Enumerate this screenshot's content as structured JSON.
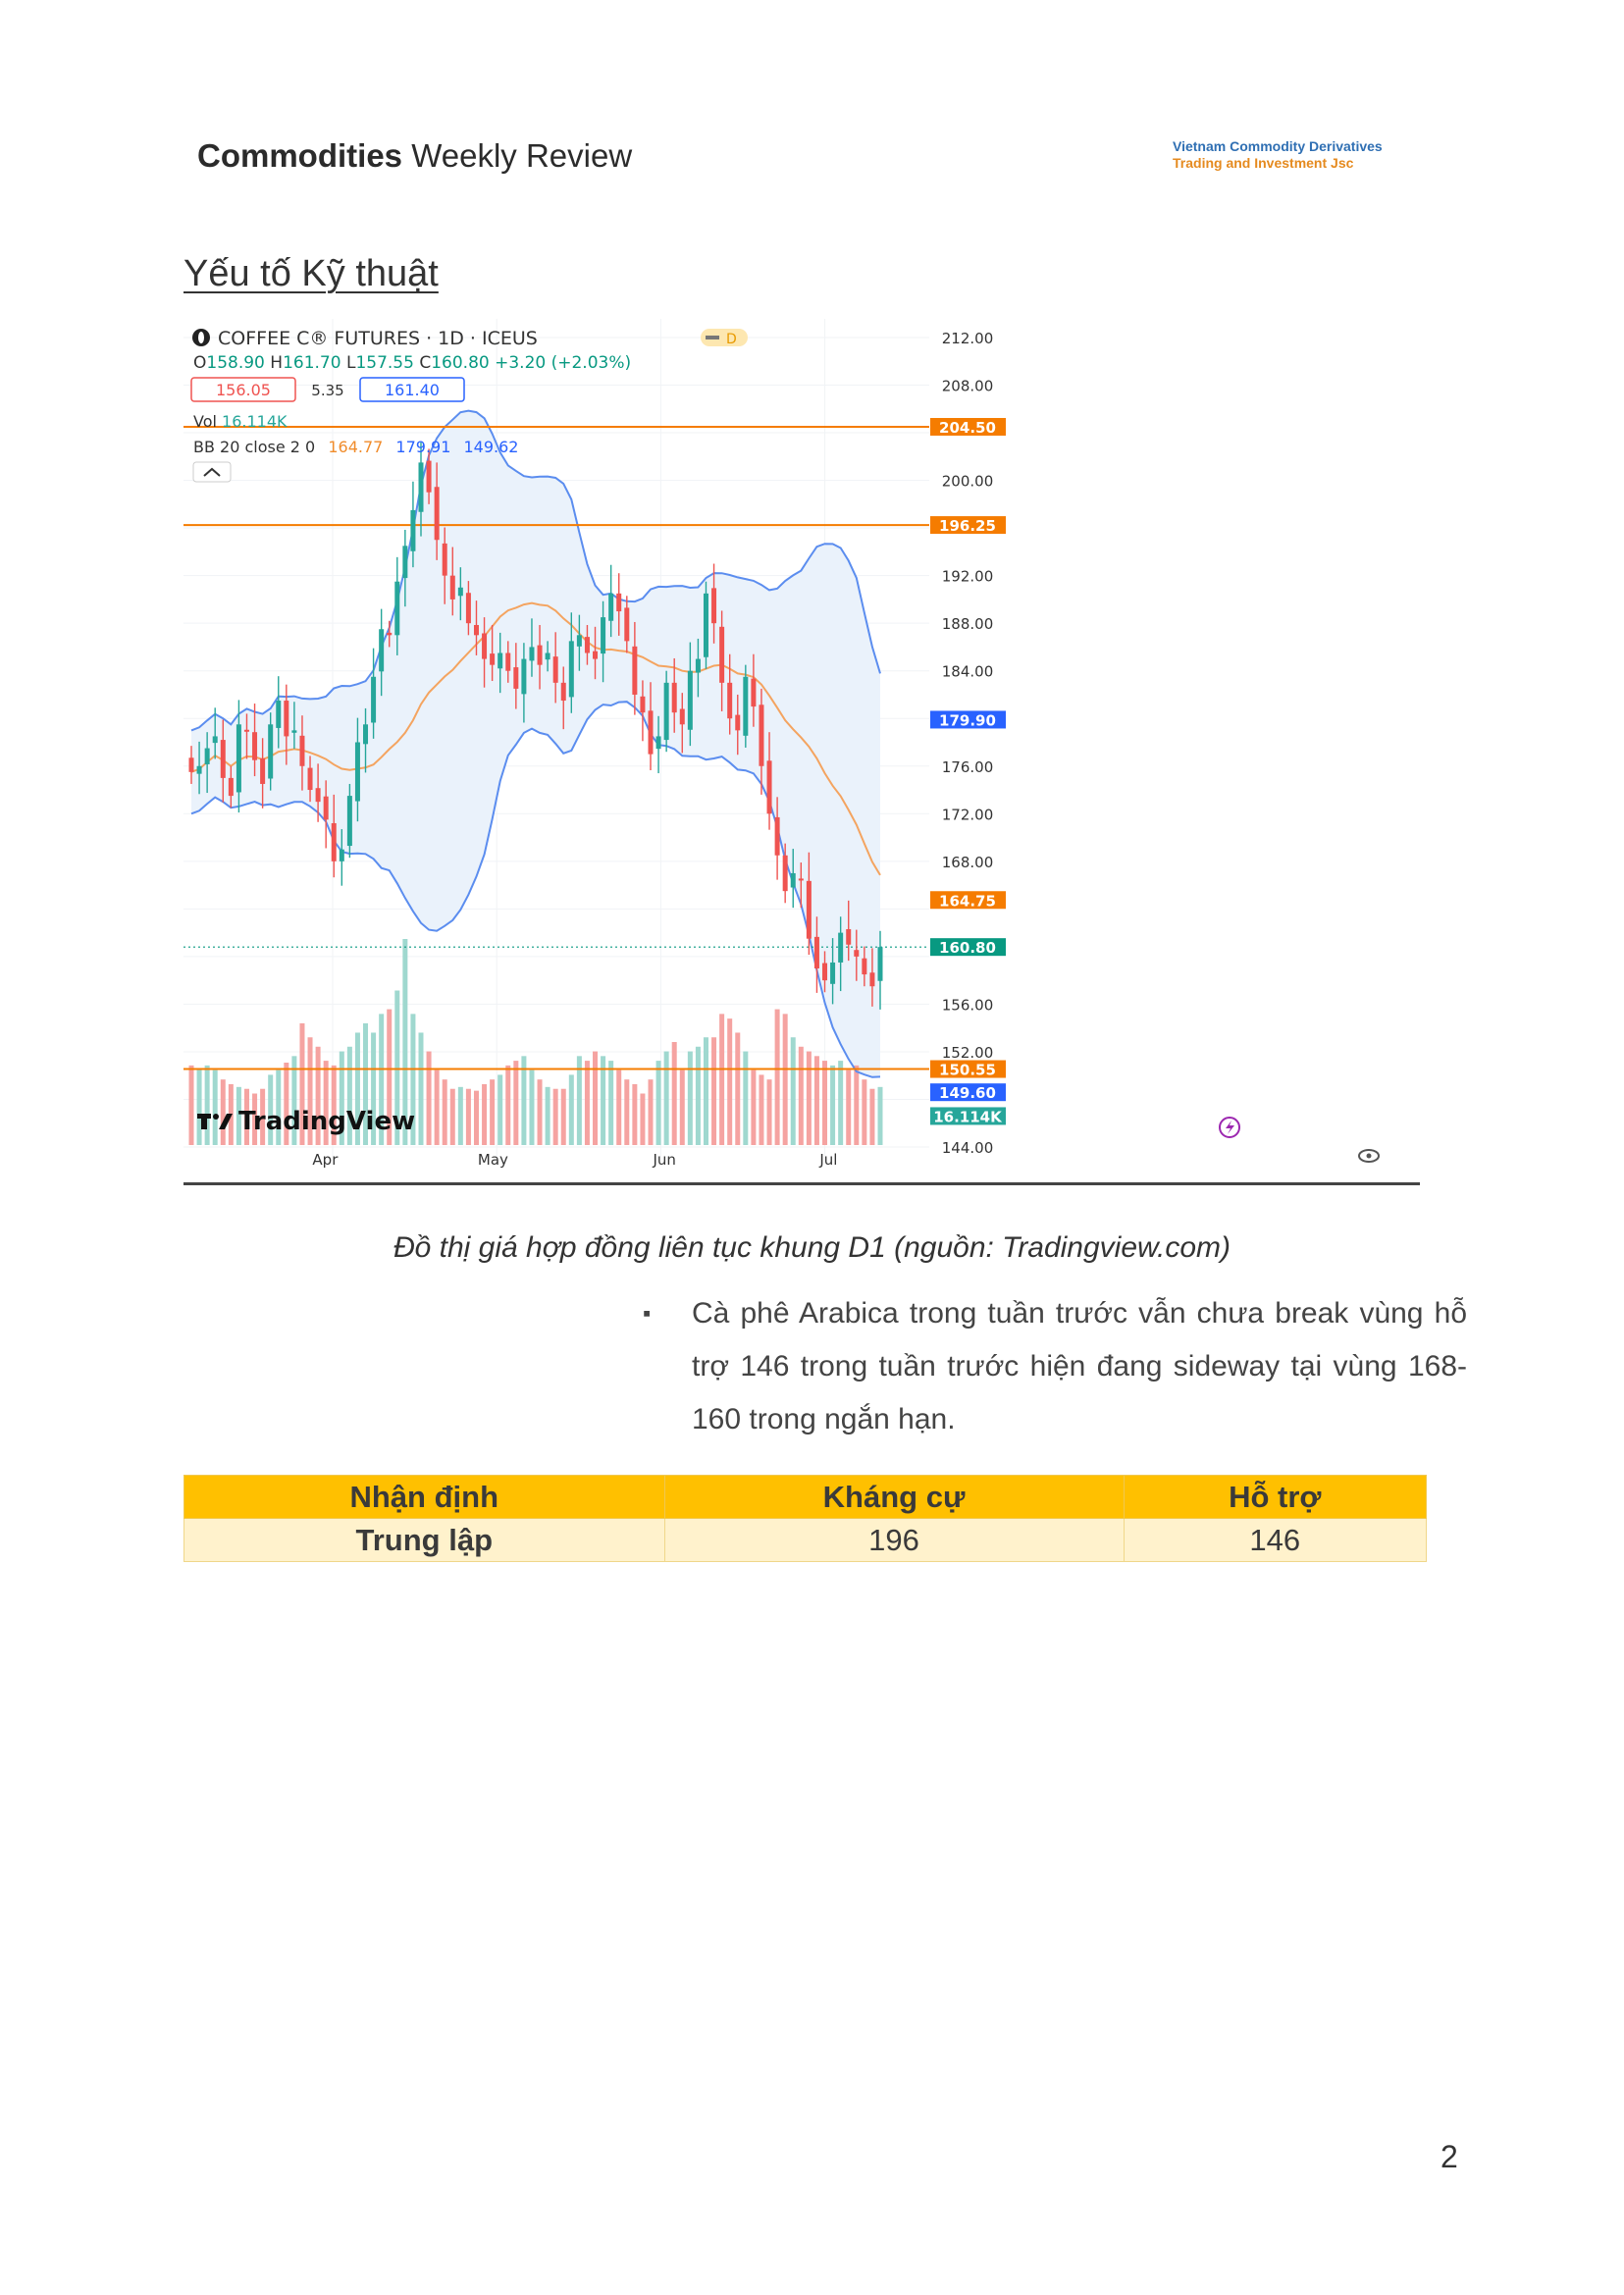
{
  "header": {
    "title_bold": "Commodities",
    "title_rest": "Weekly Review",
    "company_line1": "Vietnam Commodity Derivatives",
    "company_line2": "Trading and Investment Jsc"
  },
  "section_title": "Yếu tố Kỹ thuật",
  "chart": {
    "symbol": "COFFEE C® FUTURES · 1D · ICEUS",
    "badge": "D",
    "ohlc": {
      "open_label": "O",
      "open": "158.90",
      "high_label": "H",
      "high": "161.70",
      "low_label": "L",
      "low": "157.55",
      "close_label": "C",
      "close": "160.80",
      "change": "+3.20 (+2.03%)"
    },
    "bid": "156.05",
    "spread": "5.35",
    "ask": "161.40",
    "vol_label": "Vol",
    "vol_value": "16.114K",
    "bb_label": "BB 20 close 2 0",
    "bb_basis": "164.77",
    "bb_upper": "179.91",
    "bb_lower": "149.62",
    "brand": "TradingView",
    "months": [
      "Apr",
      "May",
      "Jun",
      "Jul"
    ],
    "price_ticks": [
      "212.00",
      "208.00",
      "204.50",
      "200.00",
      "196.25",
      "192.00",
      "188.00",
      "184.00",
      "179.90",
      "176.00",
      "172.00",
      "168.00",
      "164.75",
      "160.80",
      "156.00",
      "152.00",
      "150.55",
      "149.60",
      "16.114K",
      "144.00"
    ],
    "colors": {
      "up": "#26a69a",
      "down": "#ef5350",
      "bb_band": "#5b8def",
      "bb_basis": "#f4a460",
      "level": "#f57c00",
      "last_price": "#089981",
      "upper_tag": "#2962ff"
    }
  },
  "chart_data": {
    "type": "candlestick",
    "title": "COFFEE C® FUTURES · 1D · ICEUS",
    "ylim": [
      144,
      212
    ],
    "x_axis_labels": [
      "Apr",
      "May",
      "Jun",
      "Jul"
    ],
    "horizontal_levels": [
      204.5,
      196.25,
      150.55
    ],
    "last_price": 160.8,
    "bollinger": {
      "period": 20,
      "basis": 164.77,
      "upper": 179.91,
      "lower": 149.62
    },
    "close": [
      175.5,
      176.0,
      177.5,
      178.5,
      175.0,
      173.5,
      179.5,
      179.0,
      176.5,
      174.5,
      179.5,
      181.5,
      178.5,
      179.0,
      176.0,
      174.0,
      173.0,
      171.5,
      168.0,
      169.0,
      173.5,
      178.0,
      179.5,
      183.5,
      187.5,
      187.0,
      191.5,
      194.5,
      197.5,
      201.5,
      199.0,
      195.0,
      192.0,
      190.0,
      191.0,
      188.0,
      187.0,
      185.0,
      184.5,
      185.5,
      184.0,
      182.5,
      185.0,
      186.0,
      184.5,
      185.5,
      183.0,
      181.5,
      186.5,
      187.0,
      185.5,
      185.0,
      188.5,
      190.5,
      189.0,
      186.5,
      182.0,
      180.5,
      177.0,
      178.5,
      183.0,
      180.5,
      179.5,
      184.0,
      185.0,
      190.5,
      188.0,
      183.0,
      180.0,
      179.0,
      183.5,
      181.0,
      176.0,
      172.0,
      168.5,
      165.5,
      167.0,
      166.5,
      161.5,
      159.0,
      158.0,
      159.5,
      162.0,
      161.0,
      160.0,
      158.5,
      157.5,
      160.8
    ],
    "volume_relative": [
      0.85,
      0.82,
      0.85,
      0.8,
      0.7,
      0.65,
      0.62,
      0.6,
      0.55,
      0.6,
      0.75,
      0.8,
      0.88,
      0.95,
      1.3,
      1.15,
      1.05,
      0.9,
      0.85,
      1.0,
      1.05,
      1.2,
      1.3,
      1.2,
      1.4,
      1.45,
      1.65,
      2.2,
      1.4,
      1.2,
      1.0,
      0.8,
      0.7,
      0.6,
      0.62,
      0.6,
      0.58,
      0.65,
      0.7,
      0.75,
      0.85,
      0.9,
      0.95,
      0.8,
      0.7,
      0.62,
      0.6,
      0.6,
      0.75,
      0.95,
      0.9,
      1.0,
      0.95,
      0.9,
      0.8,
      0.7,
      0.65,
      0.55,
      0.7,
      0.9,
      1.0,
      1.1,
      0.8,
      1.0,
      1.05,
      1.15,
      1.15,
      1.4,
      1.35,
      1.2,
      1.0,
      0.8,
      0.75,
      0.7,
      1.45,
      1.4,
      1.15,
      1.05,
      1.0,
      0.95,
      0.9,
      0.85,
      0.9,
      0.8,
      0.85,
      0.7,
      0.6,
      0.62
    ]
  },
  "caption": "Đồ thị  giá hợp đồng liên tục khung D1 (nguồn: Tradingview.com)",
  "bullet": "▪",
  "bullet_text": "Cà phê Arabica trong tuần trước vẫn chưa break vùng hỗ trợ 146  trong tuần trước hiện đang sideway tại vùng 168-160 trong ngắn hạn.",
  "table": {
    "headers": [
      "Nhận định",
      "Kháng cự",
      "Hỗ trợ"
    ],
    "row": [
      "Trung lập",
      "196",
      "146"
    ]
  },
  "page_number": "2"
}
